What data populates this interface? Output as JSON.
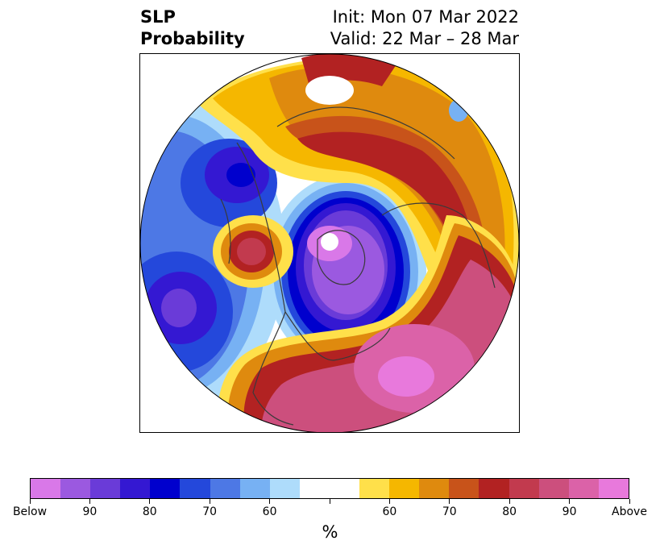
{
  "title": {
    "left_line1": "SLP",
    "left_line2": "Probability",
    "right_line1": "Init: Mon 07 Mar 2022",
    "right_line2": "Valid: 22 Mar – 28 Mar"
  },
  "map": {
    "projection": "north-polar-stereographic",
    "features": [
      "coastlines",
      "country-borders",
      "state-province-borders"
    ]
  },
  "colorbar": {
    "label": "%",
    "colors": [
      "#d978e8",
      "#9b59e0",
      "#6a3bd8",
      "#3418d2",
      "#0000cd",
      "#2448db",
      "#4d78e5",
      "#77b1f3",
      "#aedcfb",
      "#ffffff",
      "#ffffff",
      "#ffe04a",
      "#f5b700",
      "#df8a0e",
      "#c8531a",
      "#b22222",
      "#c23a4e",
      "#cc4f7d",
      "#db62a8",
      "#e879dc"
    ],
    "tick_labels": [
      "Below",
      "90",
      "80",
      "70",
      "60",
      "",
      "60",
      "70",
      "80",
      "90",
      "Above"
    ]
  }
}
